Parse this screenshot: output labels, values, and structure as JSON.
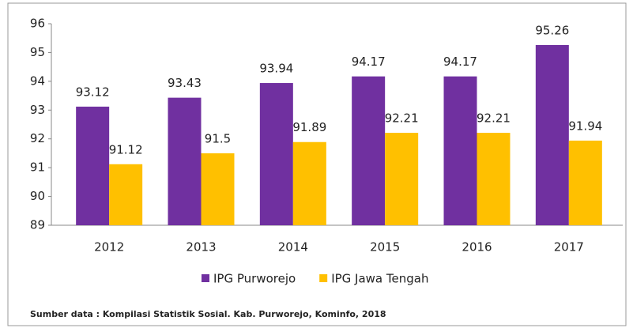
{
  "chart_data": {
    "type": "bar",
    "categories": [
      "2012",
      "2013",
      "2014",
      "2015",
      "2016",
      "2017"
    ],
    "series": [
      {
        "name": "IPG Purworejo",
        "color": "#7030a0",
        "values": [
          93.12,
          93.43,
          93.94,
          94.17,
          94.17,
          95.26
        ]
      },
      {
        "name": "IPG Jawa Tengah",
        "color": "#ffc000",
        "values": [
          91.12,
          91.5,
          91.89,
          92.21,
          92.21,
          91.94
        ]
      }
    ],
    "ylim": [
      89,
      96
    ],
    "yticks": [
      89,
      90,
      91,
      92,
      93,
      94,
      95,
      96
    ],
    "grid": false,
    "legend": "bottom",
    "source": "Sumber data : Kompilasi Statistik Sosial. Kab. Purworejo, Kominfo, 2018"
  }
}
